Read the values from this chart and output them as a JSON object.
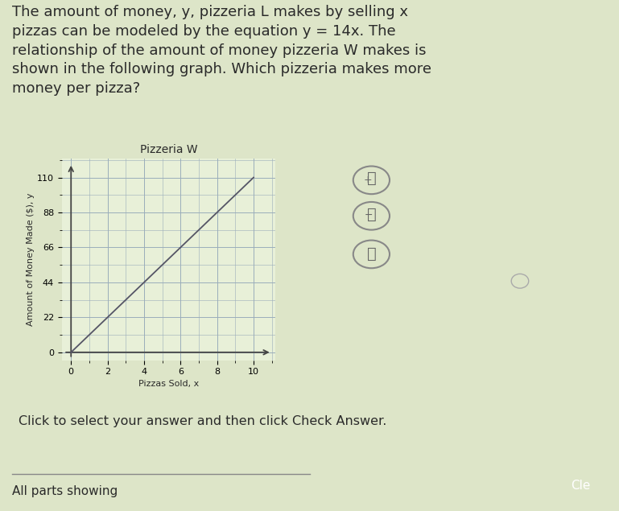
{
  "background_color": "#dde5c8",
  "text_color": "#2a2a2a",
  "problem_text_lines": [
    "The amount of money, y, pizzeria L makes by selling x",
    "pizzas can be modeled by the equation y = 14x. The",
    "relationship of the amount of money pizzeria W makes is",
    "shown in the following graph. Which pizzeria makes more",
    "money per pizza?"
  ],
  "graph_title": "Pizzeria W",
  "xlabel": "Pizzas Sold, x",
  "ylabel": "Amount of Money Made ($), y",
  "xlim": [
    0,
    10
  ],
  "ylim": [
    0,
    110
  ],
  "xticks": [
    0,
    2,
    4,
    6,
    8,
    10
  ],
  "yticks": [
    0,
    22,
    44,
    66,
    88,
    110
  ],
  "line_x": [
    0,
    10
  ],
  "line_y": [
    0,
    110
  ],
  "line_color": "#555566",
  "grid_color": "#9aadbb",
  "axis_color": "#444444",
  "bottom_text": "Click to select your answer and then click Check Answer.",
  "footer_text": "All parts showing",
  "graph_bg": "#e8f0d8",
  "title_fontsize": 10,
  "label_fontsize": 8,
  "tick_fontsize": 8,
  "text_fontsize": 13,
  "circle_color": "#bbbbbb",
  "dot_color": "#aaaaaa"
}
